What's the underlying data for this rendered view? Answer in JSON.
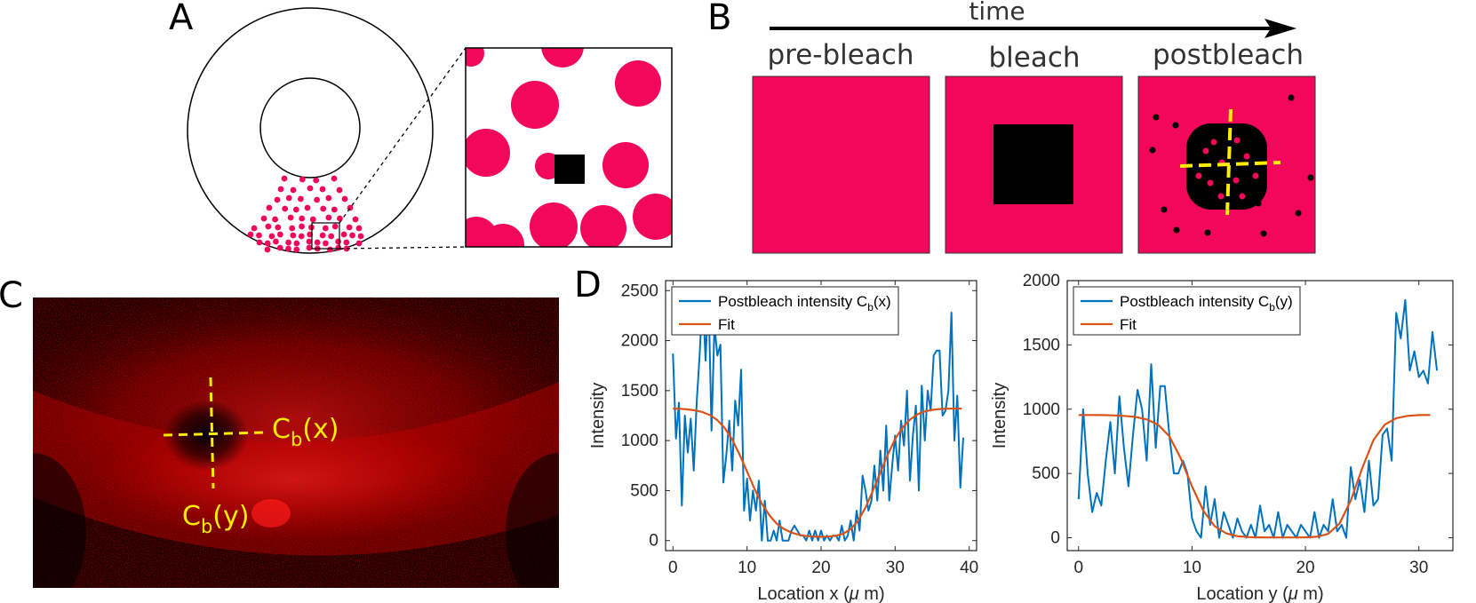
{
  "panels": {
    "a": "A",
    "b": "B",
    "c": "C",
    "d": "D"
  },
  "panel_b": {
    "time_label": "time",
    "stages": [
      "pre-bleach",
      "bleach",
      "postbleach"
    ]
  },
  "panel_c": {
    "cbx": "C",
    "cbx_sub": "b",
    "cbx_arg": "(x)",
    "cby": "C",
    "cby_sub": "b",
    "cby_arg": "(y)"
  },
  "colors": {
    "magenta": "#f2075a",
    "blue_series": "#0072bd",
    "fit_series": "#d95319",
    "marker_yellow": "#ffee00"
  },
  "chart_data": [
    {
      "type": "line",
      "xlabel_main": "Location x (",
      "xlabel_mu": "μ",
      "xlabel_end": " m)",
      "ylabel": "Intensity",
      "xlim": [
        -1,
        41
      ],
      "ylim": [
        -100,
        2600
      ],
      "xticks": [
        0,
        10,
        20,
        30,
        40
      ],
      "yticks": [
        0,
        500,
        1000,
        1500,
        2000,
        2500
      ],
      "legend_placement": "top-left",
      "series": [
        {
          "name_main": "Postbleach intensity C",
          "name_sub": "b",
          "name_end": "(x)",
          "color": "#0072bd",
          "x": [
            0,
            0.4,
            0.8,
            1.2,
            1.6,
            2.0,
            2.4,
            2.8,
            3.2,
            3.6,
            4.0,
            4.4,
            4.8,
            5.2,
            5.6,
            6.0,
            6.4,
            6.8,
            7.2,
            7.6,
            8.0,
            8.4,
            8.8,
            9.2,
            9.6,
            10.0,
            10.4,
            10.8,
            11.2,
            11.6,
            12.0,
            12.4,
            12.8,
            13.2,
            13.6,
            14.0,
            14.4,
            14.8,
            15.2,
            15.6,
            16.0,
            16.4,
            16.8,
            17.2,
            17.6,
            18.0,
            18.4,
            18.8,
            19.2,
            19.6,
            20.0,
            20.4,
            20.8,
            21.2,
            21.6,
            22.0,
            22.4,
            22.8,
            23.2,
            23.6,
            24.0,
            24.4,
            24.8,
            25.2,
            25.6,
            26.0,
            26.4,
            26.8,
            27.2,
            27.6,
            28.0,
            28.4,
            28.8,
            29.2,
            29.6,
            30.0,
            30.4,
            30.8,
            31.2,
            31.6,
            32.0,
            32.4,
            32.8,
            33.2,
            33.6,
            34.0,
            34.4,
            34.8,
            35.2,
            35.6,
            36.0,
            36.4,
            36.8,
            37.2,
            37.6,
            38.0,
            38.4,
            38.8,
            39.2
          ],
          "y": [
            1870,
            1020,
            1380,
            350,
            1250,
            880,
            1220,
            700,
            1380,
            1850,
            2480,
            1800,
            2480,
            1100,
            2150,
            1850,
            1960,
            580,
            850,
            1200,
            700,
            1400,
            1150,
            1710,
            300,
            620,
            200,
            500,
            300,
            600,
            0,
            400,
            0,
            0,
            100,
            0,
            200,
            0,
            0,
            0,
            100,
            150,
            100,
            50,
            50,
            0,
            100,
            0,
            100,
            0,
            100,
            0,
            50,
            0,
            50,
            50,
            0,
            150,
            0,
            50,
            200,
            0,
            300,
            100,
            650,
            500,
            300,
            400,
            750,
            400,
            900,
            500,
            1150,
            400,
            750,
            1050,
            700,
            1200,
            950,
            1500,
            600,
            1050,
            1350,
            500,
            1550,
            1000,
            1500,
            1300,
            1850,
            1900,
            1900,
            1250,
            1300,
            1500,
            2280,
            1000,
            1450,
            530,
            1030
          ]
        },
        {
          "name": "Fit",
          "color": "#d95319",
          "x": [
            0,
            1,
            2,
            3,
            4,
            5,
            6,
            7,
            8,
            9,
            10,
            11,
            12,
            13,
            14,
            15,
            16,
            17,
            18,
            19,
            20,
            21,
            22,
            23,
            24,
            25,
            26,
            27,
            28,
            29,
            30,
            31,
            32,
            33,
            34,
            35,
            36,
            37,
            38,
            39
          ],
          "y": [
            1320,
            1318,
            1312,
            1302,
            1285,
            1255,
            1205,
            1125,
            1010,
            860,
            690,
            520,
            370,
            255,
            170,
            115,
            80,
            58,
            45,
            40,
            38,
            40,
            48,
            70,
            115,
            200,
            330,
            500,
            680,
            860,
            1015,
            1130,
            1210,
            1262,
            1292,
            1308,
            1316,
            1319,
            1320,
            1320
          ]
        }
      ]
    },
    {
      "type": "line",
      "xlabel_main": "Location y (",
      "xlabel_mu": "μ",
      "xlabel_end": " m)",
      "ylabel": "Intensity",
      "xlim": [
        -1,
        33
      ],
      "ylim": [
        -100,
        2000
      ],
      "xticks": [
        0,
        10,
        20,
        30
      ],
      "yticks": [
        0,
        500,
        1000,
        1500,
        2000
      ],
      "legend_placement": "top-left",
      "series": [
        {
          "name_main": "Postbleach intensity C",
          "name_sub": "b",
          "name_end": "(y)",
          "color": "#0072bd",
          "x": [
            0,
            0.4,
            0.8,
            1.2,
            1.6,
            2.0,
            2.4,
            2.8,
            3.2,
            3.6,
            4.0,
            4.4,
            4.8,
            5.2,
            5.6,
            6.0,
            6.4,
            6.8,
            7.2,
            7.6,
            8.0,
            8.4,
            8.8,
            9.2,
            9.6,
            10.0,
            10.4,
            10.8,
            11.2,
            11.6,
            12.0,
            12.4,
            12.8,
            13.2,
            13.6,
            14.0,
            14.4,
            14.8,
            15.2,
            15.6,
            16.0,
            16.4,
            16.8,
            17.2,
            17.6,
            18.0,
            18.4,
            18.8,
            19.2,
            19.6,
            20.0,
            20.4,
            20.8,
            21.2,
            21.6,
            22.0,
            22.4,
            22.8,
            23.2,
            23.6,
            24.0,
            24.4,
            24.8,
            25.2,
            25.6,
            26.0,
            26.4,
            26.8,
            27.2,
            27.6,
            28.0,
            28.4,
            28.8,
            29.2,
            29.6,
            30.0,
            30.4,
            30.8,
            31.2,
            31.6
          ],
          "y": [
            300,
            1000,
            500,
            200,
            350,
            250,
            600,
            900,
            500,
            1100,
            700,
            400,
            800,
            1150,
            1000,
            600,
            1350,
            700,
            1180,
            1180,
            800,
            500,
            500,
            600,
            500,
            150,
            50,
            0,
            400,
            100,
            300,
            0,
            200,
            100,
            0,
            150,
            50,
            0,
            100,
            0,
            250,
            50,
            100,
            0,
            200,
            0,
            100,
            50,
            0,
            100,
            50,
            0,
            200,
            0,
            100,
            50,
            300,
            50,
            100,
            0,
            550,
            300,
            450,
            200,
            600,
            250,
            300,
            800,
            850,
            600,
            1750,
            1550,
            1850,
            1300,
            1450,
            1250,
            1300,
            1200,
            1600,
            1300
          ]
        },
        {
          "name": "Fit",
          "color": "#d95319",
          "x": [
            0,
            1,
            2,
            3,
            4,
            5,
            6,
            7,
            8,
            9,
            10,
            11,
            12,
            13,
            14,
            15,
            16,
            17,
            18,
            19,
            20,
            21,
            22,
            23,
            24,
            25,
            26,
            27,
            28,
            29,
            30,
            31
          ],
          "y": [
            955,
            955,
            954,
            952,
            948,
            940,
            920,
            880,
            790,
            620,
            400,
            210,
            90,
            35,
            12,
            5,
            3,
            2,
            2,
            2,
            3,
            8,
            30,
            110,
            290,
            540,
            760,
            880,
            930,
            948,
            954,
            955
          ]
        }
      ]
    }
  ]
}
